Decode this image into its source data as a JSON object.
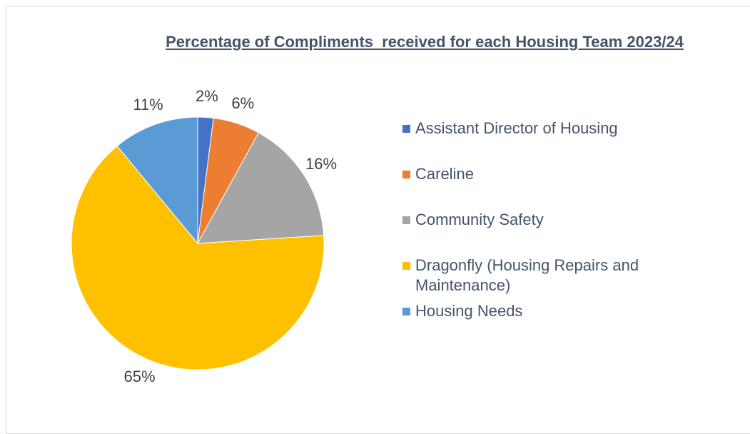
{
  "chart_data": {
    "type": "pie",
    "title": "Percentage of Compliments  received for each Housing Team 2023/24",
    "categories": [
      "Assistant Director of Housing",
      "Careline",
      "Community Safety",
      "Dragonfly (Housing Repairs and Maintenance)",
      "Housing Needs"
    ],
    "values": [
      2,
      6,
      16,
      65,
      11
    ],
    "value_labels": [
      "2%",
      "6%",
      "16%",
      "65%",
      "11%"
    ],
    "colors": [
      "#4472c4",
      "#ed7d31",
      "#a5a5a5",
      "#ffc000",
      "#5b9bd5"
    ],
    "legend": "right"
  }
}
